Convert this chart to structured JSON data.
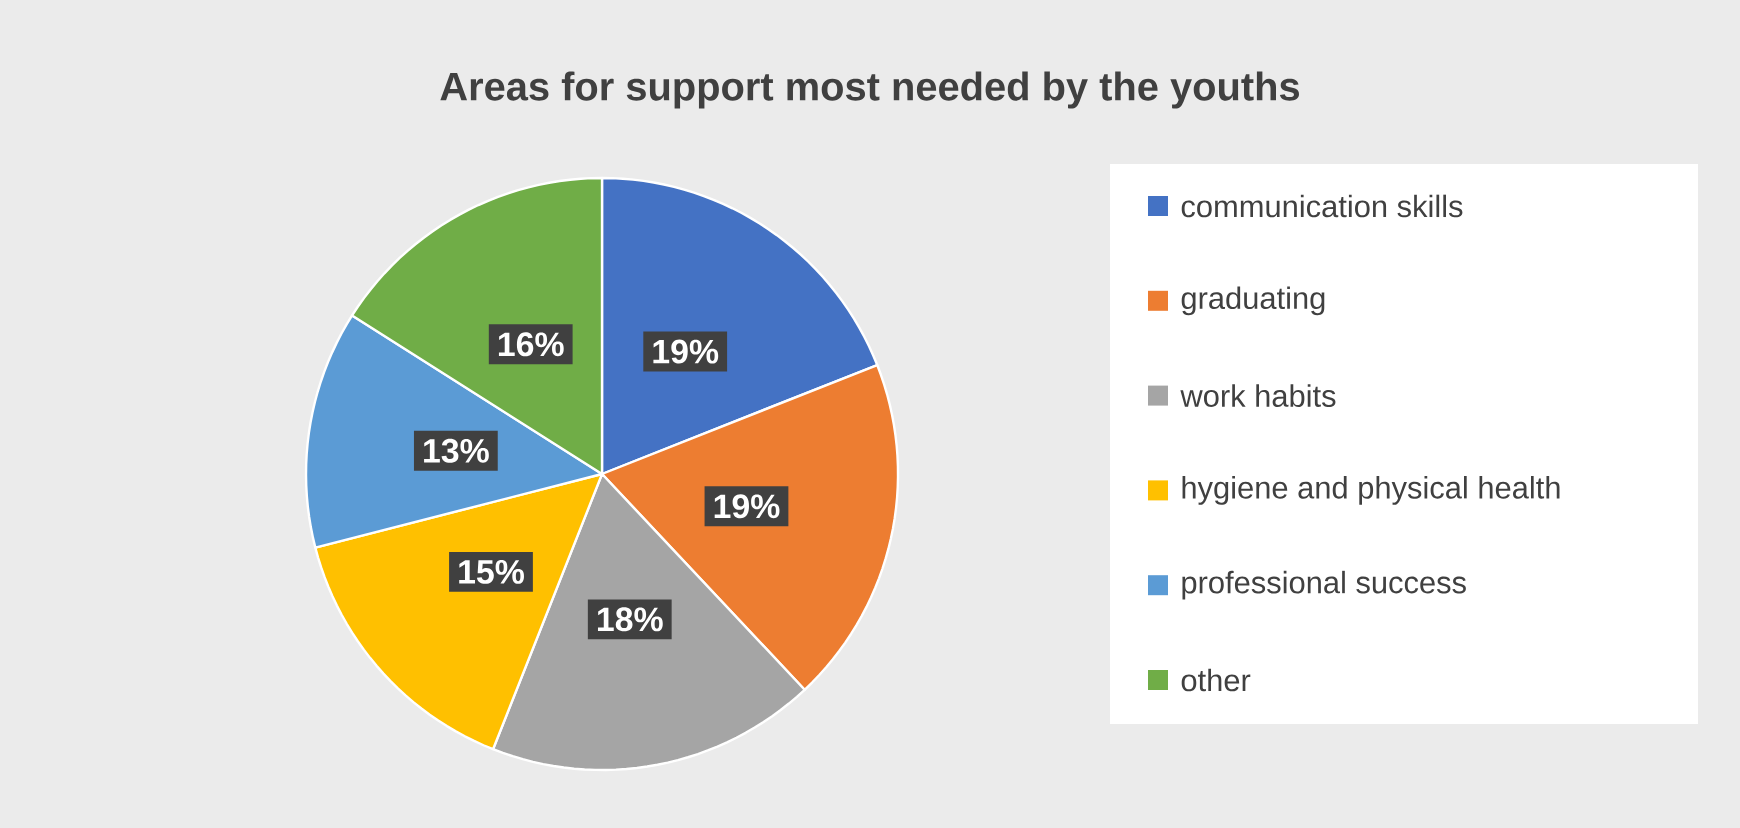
{
  "chart_data": {
    "type": "pie",
    "title": "Areas for support most needed by the youths",
    "categories": [
      "communication skills",
      "graduating",
      "work habits",
      "hygiene and physical health",
      "professional success",
      "other"
    ],
    "values": [
      19,
      19,
      18,
      15,
      13,
      16
    ],
    "colors": [
      "#4472c4",
      "#ed7d31",
      "#a5a5a5",
      "#ffc000",
      "#5b9bd5",
      "#70ad47"
    ],
    "value_labels": [
      "19%",
      "19%",
      "18%",
      "15%",
      "13%",
      "16%"
    ],
    "legend": "right"
  }
}
